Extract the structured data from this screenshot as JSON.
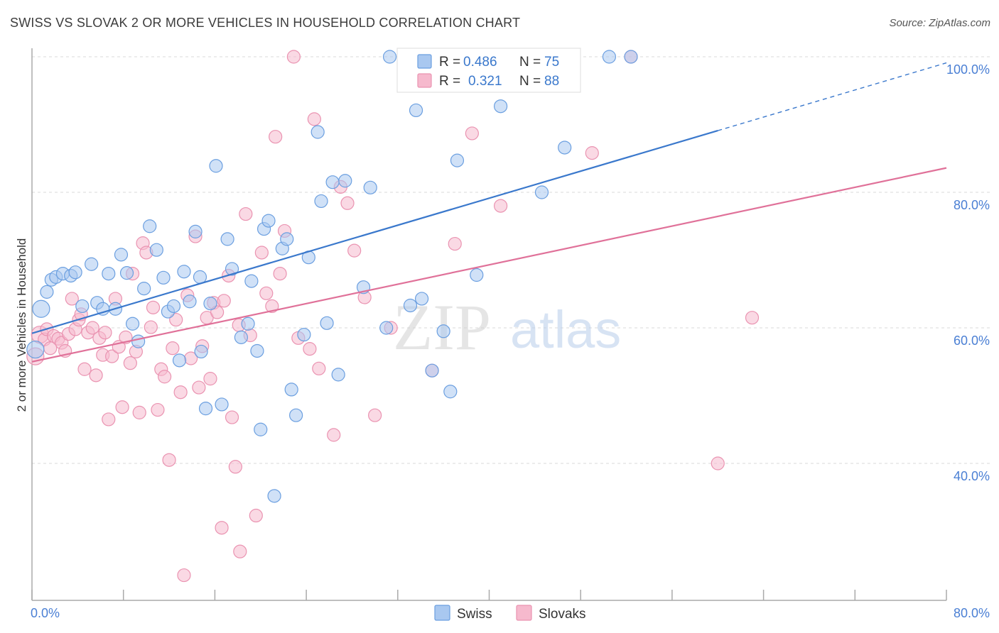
{
  "title": "SWISS VS SLOVAK 2 OR MORE VEHICLES IN HOUSEHOLD CORRELATION CHART",
  "source": "Source: ZipAtlas.com",
  "watermark": {
    "zip": "ZIP",
    "atlas": "atlas"
  },
  "colors": {
    "swiss_fill": "#a9c8f0",
    "swiss_stroke": "#6b9fe0",
    "swiss_line": "#3a78cc",
    "slovak_fill": "#f6b9cd",
    "slovak_stroke": "#ea93b1",
    "slovak_line": "#e07199",
    "tick_text": "#4a7fd4",
    "grid": "#d9d9d9"
  },
  "legend_top": {
    "rows": [
      {
        "r_label": "R =",
        "r_value": "0.486",
        "n_label": "N =",
        "n_value": "75"
      },
      {
        "r_label": "R =",
        "r_value": "0.321",
        "n_label": "N =",
        "n_value": "88"
      }
    ]
  },
  "legend_bottom": {
    "swiss": "Swiss",
    "slovaks": "Slovaks"
  },
  "chart_data": {
    "type": "scatter",
    "title": "SWISS VS SLOVAK 2 OR MORE VEHICLES IN HOUSEHOLD CORRELATION CHART",
    "xlabel": "",
    "ylabel": "2 or more Vehicles in Household",
    "xlim": [
      0,
      80
    ],
    "ylim": [
      20,
      102
    ],
    "x_tick_labels": [
      "0.0%",
      "80.0%"
    ],
    "y_ticks": [
      40,
      60,
      80,
      100
    ],
    "y_tick_labels": [
      "40.0%",
      "60.0%",
      "80.0%",
      "100.0%"
    ],
    "grid": true,
    "series": [
      {
        "name": "Swiss",
        "R": 0.486,
        "N": 75,
        "trend": {
          "x0": 0,
          "y0": 59.2,
          "x1": 60,
          "y1": 89.1,
          "dash_x1": 80,
          "dash_y1": 99.1
        },
        "points": [
          [
            0.3,
            56.8
          ],
          [
            0.8,
            62.8
          ],
          [
            1.3,
            65.3
          ],
          [
            1.7,
            67.1
          ],
          [
            2.1,
            67.5
          ],
          [
            2.7,
            68.0
          ],
          [
            3.4,
            67.7
          ],
          [
            3.8,
            68.2
          ],
          [
            4.4,
            63.2
          ],
          [
            5.2,
            69.4
          ],
          [
            5.7,
            63.7
          ],
          [
            6.2,
            62.8
          ],
          [
            6.7,
            68.0
          ],
          [
            7.3,
            62.8
          ],
          [
            7.8,
            70.8
          ],
          [
            8.3,
            68.1
          ],
          [
            8.8,
            60.6
          ],
          [
            9.3,
            58.0
          ],
          [
            9.8,
            65.8
          ],
          [
            10.3,
            75.0
          ],
          [
            10.9,
            71.5
          ],
          [
            11.5,
            67.4
          ],
          [
            11.9,
            62.4
          ],
          [
            12.4,
            63.2
          ],
          [
            12.9,
            55.2
          ],
          [
            13.3,
            68.3
          ],
          [
            13.8,
            63.9
          ],
          [
            14.3,
            74.2
          ],
          [
            14.7,
            67.5
          ],
          [
            15.2,
            48.1
          ],
          [
            15.6,
            63.6
          ],
          [
            16.1,
            83.9
          ],
          [
            16.6,
            48.7
          ],
          [
            17.1,
            73.1
          ],
          [
            17.5,
            68.7
          ],
          [
            18.3,
            58.6
          ],
          [
            18.9,
            60.6
          ],
          [
            19.2,
            66.9
          ],
          [
            19.7,
            56.6
          ],
          [
            20.3,
            74.6
          ],
          [
            20.7,
            75.8
          ],
          [
            21.2,
            35.2
          ],
          [
            21.9,
            71.7
          ],
          [
            22.3,
            73.1
          ],
          [
            22.7,
            50.9
          ],
          [
            23.1,
            47.1
          ],
          [
            23.8,
            59.0
          ],
          [
            24.2,
            70.4
          ],
          [
            25.0,
            88.9
          ],
          [
            25.3,
            78.7
          ],
          [
            25.8,
            60.7
          ],
          [
            26.3,
            81.5
          ],
          [
            26.8,
            53.1
          ],
          [
            27.4,
            81.7
          ],
          [
            29.0,
            66.0
          ],
          [
            29.6,
            80.7
          ],
          [
            31.0,
            60.0
          ],
          [
            31.3,
            100.0
          ],
          [
            33.1,
            63.3
          ],
          [
            33.6,
            92.1
          ],
          [
            34.1,
            64.3
          ],
          [
            35.0,
            53.7
          ],
          [
            36.0,
            59.5
          ],
          [
            36.6,
            50.6
          ],
          [
            37.2,
            84.7
          ],
          [
            38.9,
            67.8
          ],
          [
            41.0,
            92.7
          ],
          [
            42.6,
            100.0
          ],
          [
            44.2,
            100.0
          ],
          [
            44.6,
            80.0
          ],
          [
            46.6,
            86.6
          ],
          [
            50.5,
            100.0
          ],
          [
            52.4,
            100.0
          ],
          [
            20.0,
            45.0
          ],
          [
            14.8,
            56.5
          ]
        ]
      },
      {
        "name": "Slovaks",
        "R": 0.321,
        "N": 88,
        "trend": {
          "x0": 0,
          "y0": 55.0,
          "x1": 80,
          "y1": 83.6
        },
        "points": [
          [
            0.3,
            55.8
          ],
          [
            0.7,
            59.0
          ],
          [
            1.1,
            58.3
          ],
          [
            1.3,
            59.8
          ],
          [
            1.6,
            57.0
          ],
          [
            1.9,
            58.8
          ],
          [
            2.3,
            58.4
          ],
          [
            2.6,
            57.8
          ],
          [
            2.9,
            56.6
          ],
          [
            3.2,
            59.1
          ],
          [
            3.5,
            64.3
          ],
          [
            3.8,
            59.8
          ],
          [
            4.1,
            61.2
          ],
          [
            4.3,
            62.0
          ],
          [
            4.6,
            53.9
          ],
          [
            4.9,
            59.3
          ],
          [
            5.3,
            60.0
          ],
          [
            5.6,
            53.0
          ],
          [
            5.9,
            58.5
          ],
          [
            6.2,
            56.0
          ],
          [
            6.4,
            59.3
          ],
          [
            6.7,
            46.5
          ],
          [
            7.0,
            55.8
          ],
          [
            7.3,
            64.3
          ],
          [
            7.6,
            57.2
          ],
          [
            7.9,
            48.3
          ],
          [
            8.2,
            58.6
          ],
          [
            8.6,
            54.8
          ],
          [
            8.8,
            68.0
          ],
          [
            9.1,
            56.5
          ],
          [
            9.4,
            47.5
          ],
          [
            9.7,
            72.5
          ],
          [
            10.0,
            71.1
          ],
          [
            10.4,
            60.1
          ],
          [
            10.6,
            63.0
          ],
          [
            11.0,
            47.9
          ],
          [
            11.3,
            53.9
          ],
          [
            11.6,
            52.8
          ],
          [
            12.0,
            40.5
          ],
          [
            12.3,
            57.0
          ],
          [
            12.6,
            61.2
          ],
          [
            13.0,
            50.5
          ],
          [
            13.3,
            23.5
          ],
          [
            13.6,
            64.8
          ],
          [
            13.9,
            55.5
          ],
          [
            14.3,
            73.5
          ],
          [
            14.6,
            51.2
          ],
          [
            14.9,
            57.3
          ],
          [
            15.3,
            61.5
          ],
          [
            15.6,
            52.5
          ],
          [
            15.9,
            63.7
          ],
          [
            16.2,
            62.3
          ],
          [
            16.6,
            30.5
          ],
          [
            16.8,
            64.0
          ],
          [
            17.2,
            67.7
          ],
          [
            17.5,
            46.8
          ],
          [
            17.8,
            39.5
          ],
          [
            18.2,
            27.0
          ],
          [
            18.7,
            76.8
          ],
          [
            19.1,
            58.9
          ],
          [
            19.6,
            32.3
          ],
          [
            20.1,
            71.1
          ],
          [
            20.5,
            65.1
          ],
          [
            21.0,
            63.2
          ],
          [
            21.3,
            88.2
          ],
          [
            21.7,
            68.0
          ],
          [
            22.1,
            74.3
          ],
          [
            22.9,
            100.0
          ],
          [
            23.3,
            58.5
          ],
          [
            24.3,
            56.9
          ],
          [
            24.7,
            90.8
          ],
          [
            25.1,
            54.0
          ],
          [
            26.4,
            44.2
          ],
          [
            27.6,
            78.4
          ],
          [
            28.2,
            71.4
          ],
          [
            29.1,
            64.5
          ],
          [
            30.0,
            47.1
          ],
          [
            31.4,
            60.0
          ],
          [
            35.0,
            53.7
          ],
          [
            37.0,
            72.4
          ],
          [
            38.5,
            88.7
          ],
          [
            41.0,
            78.0
          ],
          [
            49.0,
            85.8
          ],
          [
            52.4,
            100.0
          ],
          [
            60.0,
            40.0
          ],
          [
            63.0,
            61.5
          ],
          [
            27.0,
            80.8
          ],
          [
            18.1,
            60.4
          ]
        ]
      }
    ]
  }
}
